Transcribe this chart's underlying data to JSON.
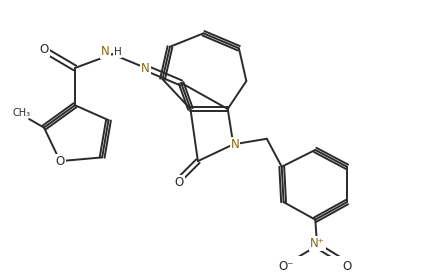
{
  "bg_color": "#ffffff",
  "line_color": "#2a2a2a",
  "N_color": "#8B6914",
  "O_color": "#2a2a2a",
  "line_width": 1.4,
  "font_size": 8.5,
  "fig_width": 4.24,
  "fig_height": 2.74,
  "dpi": 100,
  "xlim": [
    0,
    10.6
  ],
  "ylim": [
    0,
    6.8
  ]
}
